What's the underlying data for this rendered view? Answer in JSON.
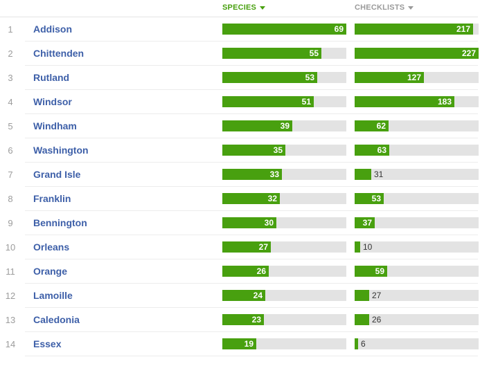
{
  "header": {
    "species_label": "SPECIES",
    "checklists_label": "CHECKLISTS"
  },
  "scale": {
    "species_max": 69,
    "checklists_max": 227
  },
  "colors": {
    "bar": "#48a00f",
    "track": "#e3e3e3",
    "link": "#3d5fa8",
    "active_header": "#48a00f",
    "inactive_header": "#9a9a9a"
  },
  "rows": [
    {
      "rank": "1",
      "county": "Addison",
      "species": 69,
      "checklists": 217
    },
    {
      "rank": "2",
      "county": "Chittenden",
      "species": 55,
      "checklists": 227
    },
    {
      "rank": "3",
      "county": "Rutland",
      "species": 53,
      "checklists": 127
    },
    {
      "rank": "4",
      "county": "Windsor",
      "species": 51,
      "checklists": 183
    },
    {
      "rank": "5",
      "county": "Windham",
      "species": 39,
      "checklists": 62
    },
    {
      "rank": "6",
      "county": "Washington",
      "species": 35,
      "checklists": 63
    },
    {
      "rank": "7",
      "county": "Grand Isle",
      "species": 33,
      "checklists": 31
    },
    {
      "rank": "8",
      "county": "Franklin",
      "species": 32,
      "checklists": 53
    },
    {
      "rank": "9",
      "county": "Bennington",
      "species": 30,
      "checklists": 37
    },
    {
      "rank": "10",
      "county": "Orleans",
      "species": 27,
      "checklists": 10
    },
    {
      "rank": "11",
      "county": "Orange",
      "species": 26,
      "checklists": 59
    },
    {
      "rank": "12",
      "county": "Lamoille",
      "species": 24,
      "checklists": 27
    },
    {
      "rank": "13",
      "county": "Caledonia",
      "species": 23,
      "checklists": 26
    },
    {
      "rank": "14",
      "county": "Essex",
      "species": 19,
      "checklists": 6
    }
  ]
}
